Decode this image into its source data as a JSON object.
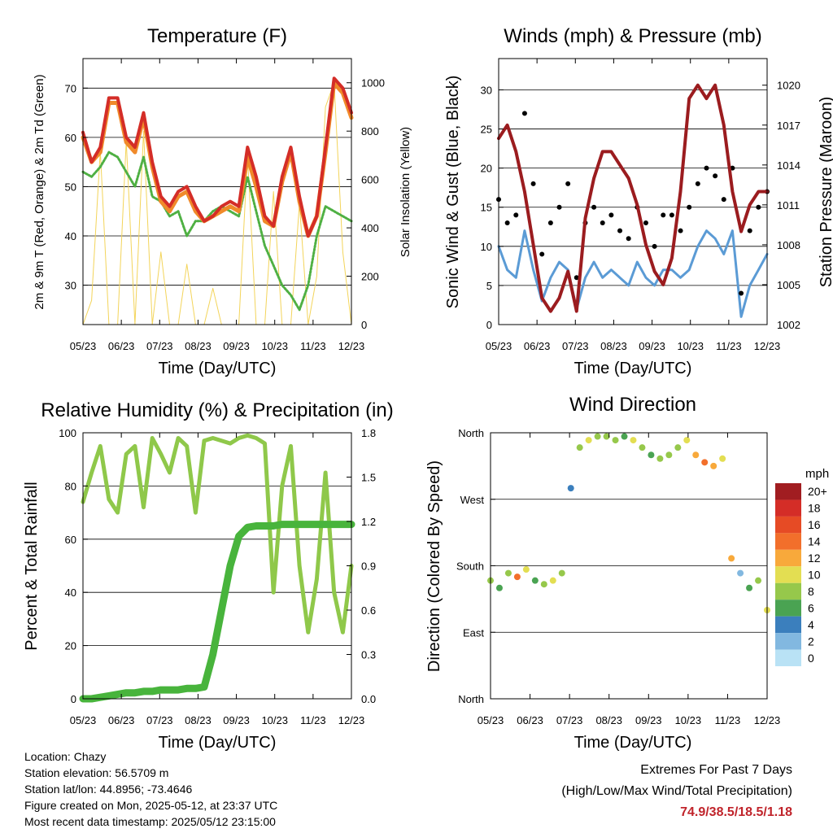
{
  "panels": {
    "temperature": {
      "title": "Temperature (F)",
      "xlabel": "Time (Day/UTC)",
      "ylabel_left": "2m & 9m T (Red, Orange) & 2m Td (Green)",
      "ylabel_right": "Solar Insolation (Yellow)",
      "x_ticks": [
        "05/23",
        "06/23",
        "07/23",
        "08/23",
        "09/23",
        "10/23",
        "11/23",
        "12/23"
      ],
      "y_ticks_left": [
        "30",
        "40",
        "50",
        "60",
        "70"
      ],
      "y_ticks_right": [
        "0",
        "200",
        "400",
        "600",
        "800",
        "1000"
      ]
    },
    "winds": {
      "title": "Winds (mph) & Pressure (mb)",
      "xlabel": "Time (Day/UTC)",
      "ylabel_left": "Sonic Wind & Gust (Blue, Black)",
      "ylabel_right": "Station Pressure (Maroon)",
      "x_ticks": [
        "05/23",
        "06/23",
        "07/23",
        "08/23",
        "09/23",
        "10/23",
        "11/23",
        "12/23"
      ],
      "y_ticks_left": [
        "0",
        "5",
        "10",
        "15",
        "20",
        "25",
        "30"
      ],
      "y_ticks_right": [
        "1002",
        "1005",
        "1008",
        "1011",
        "1014",
        "1017",
        "1020"
      ]
    },
    "humidity": {
      "title": "Relative Humidity (%) & Precipitation (in)",
      "xlabel": "Time (Day/UTC)",
      "ylabel_left": "Percent & Total Rainfall",
      "x_ticks": [
        "05/23",
        "06/23",
        "07/23",
        "08/23",
        "09/23",
        "10/23",
        "11/23",
        "12/23"
      ],
      "y_ticks_left": [
        "0",
        "20",
        "40",
        "60",
        "80",
        "100"
      ],
      "y_ticks_right": [
        "0.0",
        "0.3",
        "0.6",
        "0.9",
        "1.2",
        "1.5",
        "1.8"
      ]
    },
    "direction": {
      "title": "Wind Direction",
      "xlabel": "Time (Day/UTC)",
      "ylabel_left": "Direction (Colored By Speed)",
      "x_ticks": [
        "05/23",
        "06/23",
        "07/23",
        "08/23",
        "09/23",
        "10/23",
        "11/23",
        "12/23"
      ],
      "y_ticks_left": [
        "North",
        "East",
        "South",
        "West",
        "North"
      ],
      "colorbar_unit": "mph",
      "colorbar_labels": [
        "20+",
        "18",
        "16",
        "14",
        "12",
        "10",
        "8",
        "6",
        "4",
        "2",
        "0"
      ],
      "colorbar_colors": [
        "#a11d21",
        "#d42d27",
        "#e64b25",
        "#f26f2b",
        "#f8a93b",
        "#e3de52",
        "#96c84b",
        "#4aa352",
        "#3b7fbd",
        "#82b8e0",
        "#b9e2f5"
      ]
    }
  },
  "footer": {
    "location": "Location: Chazy",
    "elevation": "Station elevation: 56.5709 m",
    "latlon": "Station lat/lon: 44.8956; -73.4646",
    "created": "Figure created on Mon, 2025-05-12, at 23:37 UTC",
    "recent": "Most recent data timestamp: 2025/05/12 23:15:00"
  },
  "extremes": {
    "title": "Extremes For Past 7 Days",
    "subtitle": "(High/Low/Max Wind/Total Precipitation)",
    "values": "74.9/38.5/18.5/1.18"
  },
  "colors": {
    "temp_2m": "#d42d27",
    "temp_9m": "#f08a2a",
    "dewpoint": "#4fb043",
    "solar": "#f3d45a",
    "wind": "#5b9bd5",
    "gust": "#000000",
    "pressure": "#9b1c1f",
    "rh": "#8fc84a",
    "precip": "#48b43c",
    "extremes": "#c0242b"
  },
  "chart_data": [
    {
      "type": "line",
      "panel": "temperature",
      "x": [
        "05/23",
        "05/30",
        "06/06",
        "06/13",
        "06/20",
        "06/27",
        "07/04",
        "07/11",
        "07/18",
        "07/25",
        "08/01",
        "08/08",
        "08/15",
        "08/22",
        "08/29",
        "09/05",
        "09/12",
        "09/19",
        "09/26",
        "10/03",
        "10/10",
        "10/17",
        "10/24",
        "10/31",
        "11/07",
        "11/14",
        "11/21",
        "11/28",
        "12/05",
        "12/12",
        "12/19",
        "12/23"
      ],
      "series": [
        {
          "values": [
            61,
            55,
            58,
            68,
            68,
            60,
            58,
            65,
            55,
            48,
            46,
            49,
            50,
            46,
            43,
            44,
            46,
            47,
            46,
            58,
            52,
            44,
            42,
            52,
            58,
            48,
            40,
            44,
            58,
            72,
            70,
            65
          ]
        },
        {
          "values": [
            60,
            55,
            57,
            67,
            67,
            59,
            57,
            64,
            54,
            47,
            45,
            48,
            49,
            45,
            43,
            44,
            45,
            46,
            45,
            56,
            50,
            43,
            42,
            51,
            57,
            47,
            40,
            44,
            57,
            71,
            69,
            64
          ]
        },
        {
          "values": [
            53,
            52,
            54,
            57,
            56,
            53,
            50,
            56,
            48,
            47,
            44,
            45,
            40,
            43,
            43,
            45,
            46,
            45,
            44,
            52,
            45,
            38,
            34,
            30,
            28,
            25,
            30,
            40,
            46,
            45,
            44,
            43
          ]
        },
        {
          "values": [
            0,
            100,
            720,
            0,
            0,
            760,
            0,
            800,
            0,
            300,
            0,
            0,
            250,
            0,
            0,
            150,
            0,
            0,
            0,
            700,
            0,
            0,
            550,
            0,
            0,
            500,
            0,
            200,
            900,
            1000,
            300,
            0
          ]
        }
      ],
      "ylim": [
        22,
        76
      ],
      "y2lim": [
        0,
        1100
      ]
    },
    {
      "type": "line",
      "panel": "winds",
      "x": [
        "05/23",
        "05/30",
        "06/06",
        "06/13",
        "06/20",
        "06/27",
        "07/04",
        "07/11",
        "07/18",
        "07/25",
        "08/01",
        "08/08",
        "08/15",
        "08/22",
        "08/29",
        "09/05",
        "09/12",
        "09/19",
        "09/26",
        "10/03",
        "10/10",
        "10/17",
        "10/24",
        "10/31",
        "11/07",
        "11/14",
        "11/21",
        "11/28",
        "12/05",
        "12/12",
        "12/19",
        "12/23"
      ],
      "series": [
        {
          "values": [
            10,
            7,
            6,
            12,
            7,
            3,
            6,
            8,
            7,
            2,
            6,
            8,
            6,
            7,
            6,
            5,
            8,
            6,
            5,
            7,
            7,
            6,
            7,
            10,
            12,
            11,
            9,
            12,
            1,
            5,
            7,
            9
          ]
        },
        {
          "values": [
            16,
            13,
            14,
            27,
            18,
            9,
            13,
            15,
            18,
            6,
            13,
            15,
            13,
            14,
            12,
            11,
            15,
            13,
            10,
            14,
            14,
            12,
            15,
            18,
            20,
            19,
            16,
            20,
            4,
            12,
            15,
            17
          ]
        },
        {
          "values": [
            1016,
            1017,
            1015,
            1012,
            1008,
            1004,
            1003,
            1004,
            1006,
            1003,
            1010,
            1013,
            1015,
            1015,
            1014,
            1013,
            1011,
            1008,
            1006,
            1005,
            1007,
            1012,
            1019,
            1020,
            1019,
            1020,
            1017,
            1012,
            1009,
            1011,
            1012,
            1012
          ]
        }
      ],
      "ylim": [
        0,
        34
      ],
      "y2lim": [
        1002,
        1022
      ]
    },
    {
      "type": "line",
      "panel": "humidity",
      "x": [
        "05/23",
        "05/30",
        "06/06",
        "06/13",
        "06/20",
        "06/27",
        "07/04",
        "07/11",
        "07/18",
        "07/25",
        "08/01",
        "08/08",
        "08/15",
        "08/22",
        "08/29",
        "09/05",
        "09/12",
        "09/19",
        "09/26",
        "10/03",
        "10/10",
        "10/17",
        "10/24",
        "10/31",
        "11/07",
        "11/14",
        "11/21",
        "11/28",
        "12/05",
        "12/12",
        "12/19",
        "12/23"
      ],
      "series": [
        {
          "values": [
            74,
            85,
            95,
            75,
            70,
            92,
            95,
            72,
            98,
            92,
            85,
            98,
            95,
            70,
            97,
            98,
            97,
            96,
            98,
            99,
            98,
            96,
            40,
            80,
            95,
            50,
            25,
            45,
            85,
            40,
            25,
            50
          ]
        },
        {
          "values": [
            0.0,
            0.0,
            0.01,
            0.02,
            0.03,
            0.04,
            0.04,
            0.05,
            0.05,
            0.06,
            0.06,
            0.06,
            0.07,
            0.07,
            0.08,
            0.3,
            0.6,
            0.9,
            1.1,
            1.16,
            1.17,
            1.17,
            1.17,
            1.18,
            1.18,
            1.18,
            1.18,
            1.18,
            1.18,
            1.18,
            1.18,
            1.18
          ]
        }
      ],
      "ylim": [
        0,
        100
      ],
      "y2lim": [
        0,
        1.8
      ]
    },
    {
      "type": "scatter",
      "panel": "direction",
      "x": [
        "05/23",
        "05/30",
        "06/06",
        "06/13",
        "06/20",
        "06/27",
        "07/04",
        "07/11",
        "07/18",
        "07/25",
        "08/01",
        "08/08",
        "08/15",
        "08/22",
        "08/29",
        "09/05",
        "09/12",
        "09/19",
        "09/26",
        "10/03",
        "10/10",
        "10/17",
        "10/24",
        "10/31",
        "11/07",
        "11/14",
        "11/21",
        "11/28",
        "12/05",
        "12/12",
        "12/19",
        "12/23"
      ],
      "series": [
        {
          "values": [
            160,
            150,
            170,
            165,
            175,
            160,
            155,
            160,
            170,
            285,
            340,
            350,
            355,
            355,
            350,
            355,
            350,
            340,
            330,
            325,
            330,
            340,
            350,
            330,
            320,
            315,
            325,
            190,
            170,
            150,
            160,
            120
          ]
        },
        {
          "values": [
            7,
            6,
            8,
            14,
            9,
            5,
            7,
            9,
            8,
            3,
            8,
            10,
            7,
            8,
            7,
            6,
            9,
            7,
            6,
            8,
            8,
            7,
            9,
            11,
            14,
            12,
            10,
            12,
            2,
            6,
            8,
            9
          ]
        }
      ],
      "ylim": [
        0,
        360
      ]
    }
  ]
}
